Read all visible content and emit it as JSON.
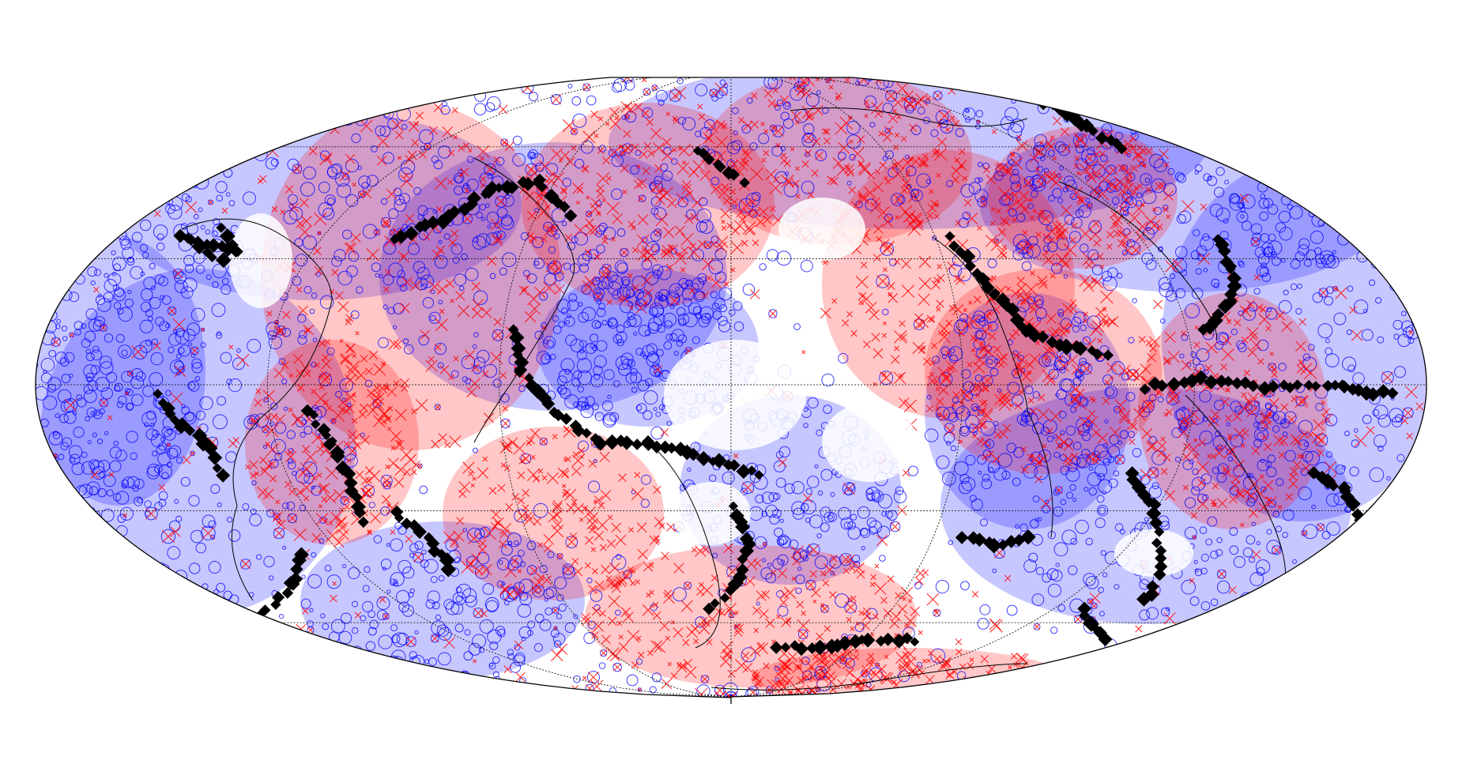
{
  "map": {
    "projection": "mollweide",
    "title": "",
    "colors": {
      "ocean_background": "#ffffff",
      "blue_markers": "#0000ff",
      "red_markers": "#ff0000",
      "black_markers": "#000000",
      "graticule": "#000000",
      "coastline": "#000000"
    },
    "graticule_latitudes": [
      -60,
      -30,
      0,
      30,
      60
    ],
    "graticule_longitudes": [
      -120,
      -60,
      0,
      60,
      120
    ],
    "marker_types": [
      {
        "name": "blue-circle",
        "symbol": "circle-open",
        "color": "#0000ff"
      },
      {
        "name": "red-cross",
        "symbol": "x",
        "color": "#ff0000"
      },
      {
        "name": "black-diamond",
        "symbol": "diamond-filled",
        "color": "#000000"
      }
    ]
  }
}
